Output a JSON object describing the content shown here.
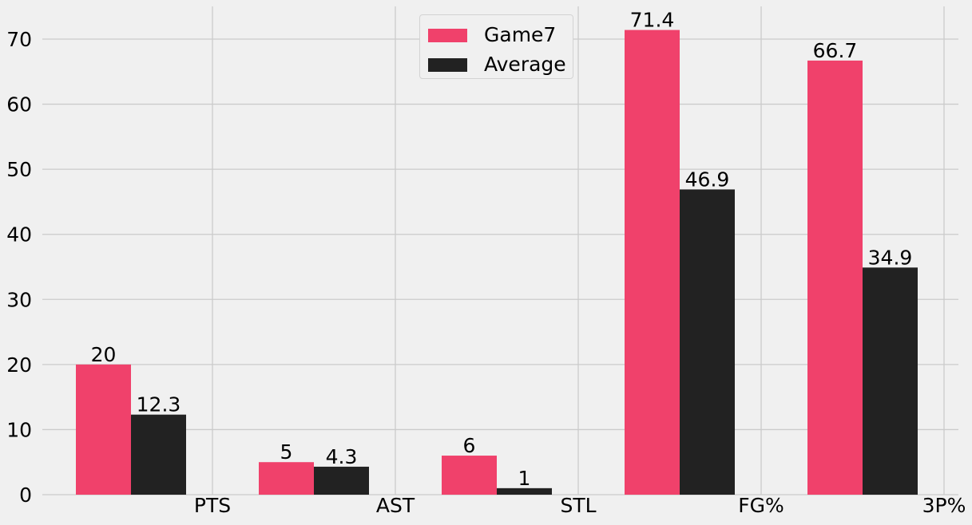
{
  "chart_data": {
    "type": "bar",
    "categories": [
      "PTS",
      "AST",
      "STL",
      "FG%",
      "3P%"
    ],
    "series": [
      {
        "name": "Game7",
        "values": [
          20,
          5,
          6,
          71.4,
          66.7
        ],
        "labels": [
          "20",
          "5",
          "6",
          "71.4",
          "66.7"
        ],
        "color": "#f0416b"
      },
      {
        "name": "Average",
        "values": [
          12.3,
          4.3,
          1,
          46.9,
          34.9
        ],
        "labels": [
          "12.3",
          "4.3",
          "1",
          "46.9",
          "34.9"
        ],
        "color": "#222222"
      }
    ],
    "y_ticks": [
      0,
      10,
      20,
      30,
      40,
      50,
      60,
      70
    ],
    "ylim": [
      0,
      74.8
    ],
    "grid": true,
    "legend_position": "top-center",
    "colors": {
      "background": "#f0f0f0",
      "grid": "#cbcbcb"
    }
  }
}
